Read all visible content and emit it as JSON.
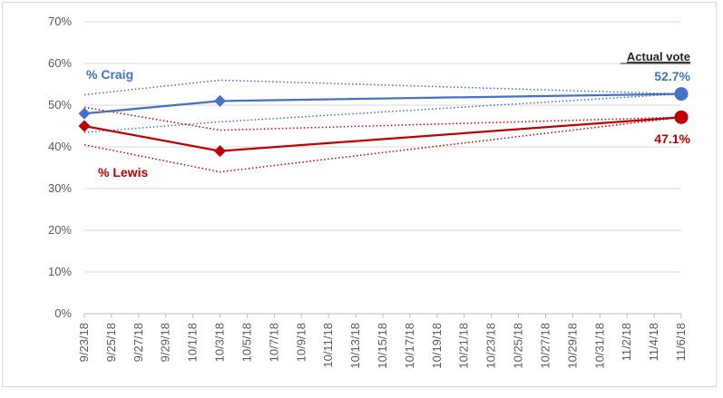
{
  "chart_data": {
    "type": "line",
    "x_ticks": [
      "9/23/18",
      "9/25/18",
      "9/27/18",
      "9/29/18",
      "10/1/18",
      "10/3/18",
      "10/5/18",
      "10/7/18",
      "10/9/18",
      "10/11/18",
      "10/13/18",
      "10/15/18",
      "10/17/18",
      "10/19/18",
      "10/21/18",
      "10/23/18",
      "10/25/18",
      "10/27/18",
      "10/29/18",
      "10/31/18",
      "11/2/18",
      "11/4/18",
      "11/6/18"
    ],
    "y_ticks": [
      "0%",
      "10%",
      "20%",
      "30%",
      "40%",
      "50%",
      "60%",
      "70%"
    ],
    "ylim": [
      0,
      70
    ],
    "xlim": [
      "9/23/18",
      "11/6/18"
    ],
    "grid": "horizontal",
    "colors": {
      "craig": "#4472c4",
      "lewis": "#c00000"
    },
    "series": [
      {
        "name": "% Craig",
        "x": [
          "9/23/18",
          "10/3/18",
          "11/6/18"
        ],
        "values": [
          48,
          51,
          52.7
        ],
        "upper": [
          52.5,
          56,
          52.7
        ],
        "lower": [
          43.5,
          46,
          52.7
        ]
      },
      {
        "name": "% Lewis",
        "x": [
          "9/23/18",
          "10/3/18",
          "11/6/18"
        ],
        "values": [
          45,
          39,
          47.1
        ],
        "upper": [
          49.5,
          44,
          47.1
        ],
        "lower": [
          40.5,
          34,
          47.1
        ]
      }
    ],
    "annotations": {
      "actual_title": "Actual vote",
      "craig_actual": "52.7%",
      "lewis_actual": "47.1%"
    }
  }
}
